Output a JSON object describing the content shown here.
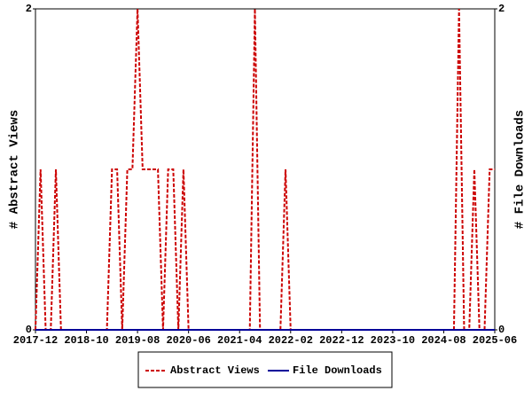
{
  "chart_data": {
    "type": "line",
    "categories": [
      "2017-12",
      null,
      null,
      null,
      null,
      null,
      null,
      null,
      null,
      null,
      "2018-10",
      null,
      null,
      null,
      null,
      null,
      null,
      null,
      null,
      null,
      "2019-08",
      null,
      null,
      null,
      null,
      null,
      null,
      null,
      null,
      null,
      "2020-06",
      null,
      null,
      null,
      null,
      null,
      null,
      null,
      null,
      null,
      "2021-04",
      null,
      null,
      null,
      null,
      null,
      null,
      null,
      null,
      null,
      "2022-02",
      null,
      null,
      null,
      null,
      null,
      null,
      null,
      null,
      null,
      "2022-12",
      null,
      null,
      null,
      null,
      null,
      null,
      null,
      null,
      null,
      "2023-10",
      null,
      null,
      null,
      null,
      null,
      null,
      null,
      null,
      null,
      "2024-08",
      null,
      null,
      null,
      null,
      null,
      null,
      null,
      null,
      null,
      "2025-06"
    ],
    "series": [
      {
        "name": "Abstract Views",
        "color": "#cc0000",
        "dash": true,
        "values": [
          0,
          1,
          0,
          0,
          1,
          0,
          0,
          0,
          0,
          0,
          0,
          0,
          0,
          0,
          0,
          1,
          1,
          0,
          1,
          1,
          2,
          1,
          1,
          1,
          1,
          0,
          1,
          1,
          0,
          1,
          0,
          0,
          0,
          0,
          0,
          0,
          0,
          0,
          0,
          0,
          0,
          0,
          0,
          2,
          0,
          0,
          0,
          0,
          0,
          1,
          0,
          0,
          0,
          0,
          0,
          0,
          0,
          0,
          0,
          0,
          0,
          0,
          0,
          0,
          0,
          0,
          0,
          0,
          0,
          0,
          0,
          0,
          0,
          0,
          0,
          0,
          0,
          0,
          0,
          0,
          0,
          0,
          0,
          2,
          0,
          0,
          1,
          0,
          0,
          1,
          1
        ]
      },
      {
        "name": "File Downloads",
        "color": "#000099",
        "dash": false,
        "axis": "y2",
        "values": [
          0,
          0,
          0,
          0,
          0,
          0,
          0,
          0,
          0,
          0,
          0,
          0,
          0,
          0,
          0,
          0,
          0,
          0,
          0,
          0,
          0,
          0,
          0,
          0,
          0,
          0,
          0,
          0,
          0,
          0,
          0,
          0,
          0,
          0,
          0,
          0,
          0,
          0,
          0,
          0,
          0,
          0,
          0,
          0,
          0,
          0,
          0,
          0,
          0,
          0,
          0,
          0,
          0,
          0,
          0,
          0,
          0,
          0,
          0,
          0,
          0,
          0,
          0,
          0,
          0,
          0,
          0,
          0,
          0,
          0,
          0,
          0,
          0,
          0,
          0,
          0,
          0,
          0,
          0,
          0,
          0,
          0,
          0,
          0,
          0,
          0,
          0,
          0,
          0,
          0,
          0
        ]
      }
    ],
    "ylabel": "# Abstract Views",
    "y2label": "# File Downloads",
    "ylim": [
      0,
      2
    ],
    "yticks": [
      0,
      2
    ],
    "y2lim": [
      0,
      2
    ],
    "y2ticks": [
      0,
      2
    ]
  }
}
